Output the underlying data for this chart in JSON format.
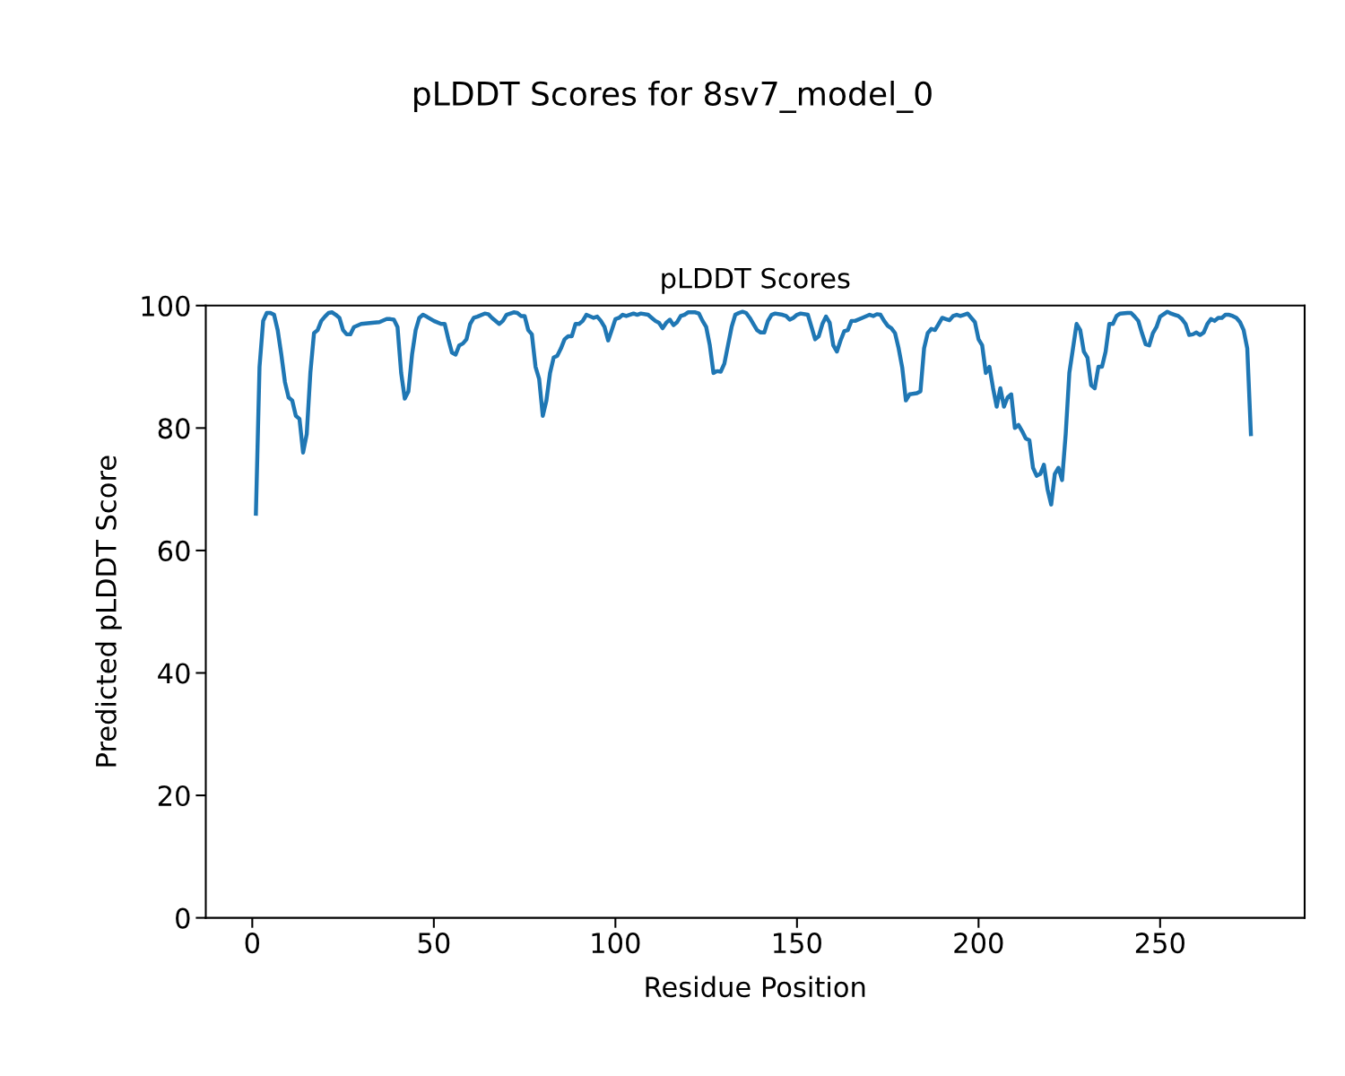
{
  "chart_data": {
    "type": "line",
    "title": "pLDDT Scores for 8sv7_model_0",
    "subtitle": "pLDDT Scores",
    "xlabel": "Residue Position",
    "ylabel": "Predicted pLDDT Score",
    "xlim": [
      -12.8,
      289.8
    ],
    "xticks": [
      0,
      50,
      100,
      150,
      200,
      250
    ],
    "ylim": [
      0,
      100
    ],
    "yticks": [
      0,
      20,
      40,
      60,
      80,
      100
    ],
    "grid": false,
    "series": [
      {
        "color": "#1f77b4",
        "x": [
          1,
          2,
          3,
          4,
          5,
          6,
          7,
          8,
          9,
          10,
          11,
          12,
          13,
          14,
          15,
          16,
          17,
          18,
          19,
          20,
          21,
          22,
          23,
          24,
          25,
          26,
          27,
          28,
          30,
          33,
          35,
          37,
          38,
          39,
          40,
          41,
          42,
          43,
          44,
          45,
          46,
          47,
          48,
          50,
          52,
          53,
          54,
          55,
          56,
          57,
          58,
          59,
          60,
          61,
          62,
          64,
          65,
          66,
          68,
          69,
          70,
          72,
          73,
          74,
          75,
          76,
          77,
          78,
          79,
          80,
          81,
          82,
          83,
          84,
          85,
          86,
          87,
          88,
          89,
          90,
          91,
          92,
          94,
          95,
          96,
          97,
          98,
          99,
          100,
          101,
          102,
          103,
          105,
          106,
          107,
          109,
          110,
          111,
          112,
          113,
          114,
          115,
          116,
          117,
          118,
          119,
          120,
          122,
          123,
          124,
          125,
          126,
          127,
          128,
          129,
          130,
          131,
          132,
          133,
          134,
          135,
          136,
          137,
          138,
          139,
          140,
          141,
          142,
          143,
          144,
          146,
          147,
          148,
          149,
          150,
          151,
          153,
          154,
          155,
          156,
          157,
          158,
          159,
          160,
          161,
          162,
          163,
          164,
          165,
          166,
          168,
          170,
          171,
          172,
          173,
          174,
          175,
          176,
          177,
          178,
          179,
          180,
          181,
          183,
          184,
          185,
          186,
          187,
          188,
          189,
          190,
          191,
          192,
          193,
          194,
          195,
          196,
          197,
          198,
          199,
          200,
          201,
          202,
          203,
          204,
          205,
          206,
          207,
          208,
          209,
          210,
          211,
          212,
          213,
          214,
          215,
          216,
          217,
          218,
          219,
          220,
          221,
          222,
          223,
          224,
          225,
          226,
          227,
          228,
          229,
          230,
          231,
          232,
          233,
          234,
          235,
          236,
          237,
          238,
          239,
          241,
          242,
          243,
          244,
          245,
          246,
          247,
          248,
          249,
          250,
          251,
          252,
          253,
          254,
          255,
          256,
          257,
          258,
          259,
          260,
          261,
          262,
          263,
          264,
          265,
          266,
          267,
          268,
          269,
          270,
          271,
          272,
          273,
          274,
          275
        ],
        "values": [
          66,
          90,
          97.5,
          98.8,
          98.8,
          98.5,
          96,
          92,
          87.5,
          85,
          84.5,
          82,
          81.5,
          76,
          79,
          89,
          95.5,
          96,
          97.5,
          98.2,
          98.8,
          98.9,
          98.5,
          98,
          96,
          95.3,
          95.3,
          96.5,
          97,
          97.2,
          97.3,
          97.8,
          97.8,
          97.7,
          96.5,
          89,
          84.8,
          86,
          92,
          96,
          98,
          98.5,
          98.2,
          97.5,
          97,
          97,
          94.5,
          92.3,
          92,
          93.5,
          93.8,
          94.5,
          97,
          98,
          98.2,
          98.7,
          98.6,
          98,
          97,
          97.5,
          98.5,
          98.9,
          98.8,
          98.3,
          98.3,
          96,
          95.3,
          90,
          88,
          82,
          84.5,
          89,
          91.5,
          91.8,
          93,
          94.5,
          95,
          95,
          97,
          97,
          97.5,
          98.5,
          98,
          98.2,
          97.5,
          96.5,
          94.3,
          96,
          97.8,
          98,
          98.5,
          98.3,
          98.7,
          98.5,
          98.7,
          98.5,
          98,
          97.5,
          97.2,
          96.3,
          97.2,
          97.7,
          96.8,
          97.3,
          98.3,
          98.5,
          98.9,
          98.9,
          98.7,
          97.5,
          96.5,
          93.5,
          89,
          89.3,
          89.2,
          90.5,
          93.5,
          96.5,
          98.5,
          98.8,
          99,
          98.8,
          98,
          97,
          96,
          95.6,
          95.6,
          97.5,
          98.5,
          98.7,
          98.5,
          98.3,
          97.7,
          98,
          98.5,
          98.7,
          98.5,
          96.5,
          94.5,
          95,
          97,
          98.2,
          97.2,
          93.5,
          92.5,
          94.3,
          95.8,
          96,
          97.5,
          97.5,
          98,
          98.5,
          98.3,
          98.6,
          98.5,
          97.5,
          96.7,
          96.3,
          95.5,
          93,
          89.8,
          84.5,
          85.5,
          85.7,
          86,
          93,
          95.5,
          96.2,
          96,
          97,
          98,
          97.8,
          97.6,
          98.3,
          98.5,
          98.3,
          98.5,
          98.7,
          98,
          97.3,
          94.5,
          93.5,
          89,
          90,
          86.5,
          83.5,
          86.5,
          83.5,
          85,
          85.5,
          80,
          80.5,
          79.5,
          78.3,
          78,
          73.5,
          72.2,
          72.5,
          74,
          70,
          67.5,
          72.5,
          73.5,
          71.5,
          79,
          89,
          93,
          97,
          96,
          92.5,
          91.5,
          87,
          86.5,
          90,
          90,
          92.5,
          97,
          97,
          98.3,
          98.7,
          98.8,
          98.8,
          98.2,
          97.5,
          95.5,
          93.7,
          93.5,
          95.5,
          96.5,
          98.2,
          98.6,
          99,
          98.7,
          98.5,
          98.3,
          97.8,
          97,
          95.2,
          95.3,
          95.6,
          95.2,
          95.6,
          97,
          97.8,
          97.5,
          98,
          98,
          98.5,
          98.5,
          98.3,
          98,
          97.3,
          96,
          93,
          79
        ]
      }
    ]
  }
}
